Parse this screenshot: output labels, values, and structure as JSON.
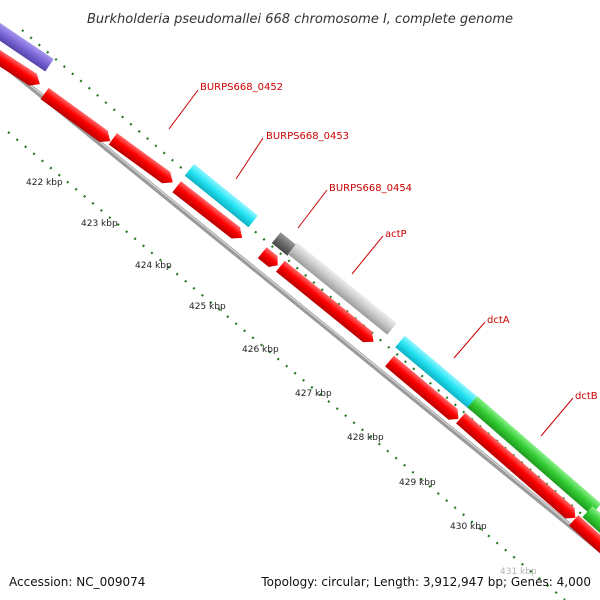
{
  "title": "Burkholderia pseudomallei 668 chromosome I, complete genome",
  "footer": {
    "accession": "Accession: NC_009074",
    "summary": "Topology: circular; Length: 3,912,947 bp; Genes: 4,000"
  },
  "ticks": [
    "422 kbp",
    "423 kbp",
    "424 kbp",
    "425 kbp",
    "426 kbp",
    "427 kbp",
    "428 kbp",
    "429 kbp",
    "430 kbp",
    "431 kbp"
  ],
  "gene_labels": [
    "BURPS668_0452",
    "BURPS668_0453",
    "BURPS668_0454",
    "actP",
    "dctA",
    "dctB"
  ],
  "colors": {
    "cds": "#ff0000",
    "cds_edge": "#aa0000",
    "cog_purple": "#7a65d6",
    "cog_cyan": "#26e0f0",
    "cog_gray": "#c8c8c8",
    "cog_darkgray": "#6a6a6a",
    "cog_green": "#33cc33",
    "backbone": "#9a9a9a",
    "gc_dots": "#227a22",
    "label": "#cc0000"
  }
}
